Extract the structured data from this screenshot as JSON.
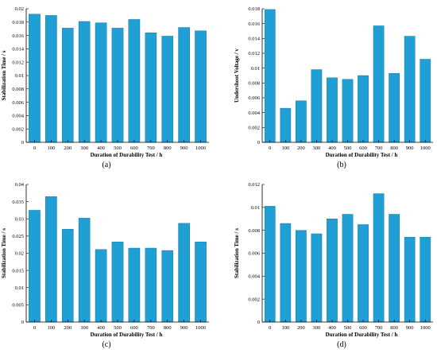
{
  "style": {
    "bar_color": "#1f9fd4",
    "axis_color": "#000000"
  },
  "chart_data": [
    {
      "id": "a",
      "type": "bar",
      "panel_label": "(a)",
      "categories": [
        "0",
        "100",
        "200",
        "300",
        "400",
        "500",
        "600",
        "700",
        "800",
        "900",
        "1000"
      ],
      "values": [
        0.0192,
        0.019,
        0.0171,
        0.0181,
        0.0179,
        0.0171,
        0.0184,
        0.0164,
        0.0159,
        0.0172,
        0.0167
      ],
      "xlabel": "Duration of Durability Test / h",
      "ylabel": "Stabilization Time / s",
      "ylim": [
        0,
        0.02
      ],
      "yticks": [
        "0",
        "0.002",
        "0.004",
        "0.006",
        "0.008",
        "0.01",
        "0.012",
        "0.014",
        "0.016",
        "0.018",
        "0.02"
      ],
      "yticks_values": [
        0,
        0.002,
        0.004,
        0.006,
        0.008,
        0.01,
        0.012,
        0.014,
        0.016,
        0.018,
        0.02
      ],
      "grid": false,
      "legend": "none"
    },
    {
      "id": "b",
      "type": "bar",
      "panel_label": "(b)",
      "categories": [
        "0",
        "100",
        "200",
        "300",
        "400",
        "500",
        "600",
        "700",
        "800",
        "900",
        "1000"
      ],
      "values": [
        0.0179,
        0.0046,
        0.0056,
        0.0098,
        0.0087,
        0.0085,
        0.009,
        0.0157,
        0.0093,
        0.0143,
        0.0112
      ],
      "xlabel": "Duration of Durability Test / h",
      "ylabel": "Undershoot Voltage / v",
      "ylim": [
        0,
        0.018
      ],
      "yticks": [
        "0",
        "0.002",
        "0.004",
        "0.006",
        "0.008",
        "0.01",
        "0.012",
        "0.014",
        "0.016",
        "0.018"
      ],
      "yticks_values": [
        0,
        0.002,
        0.004,
        0.006,
        0.008,
        0.01,
        0.012,
        0.014,
        0.016,
        0.018
      ],
      "grid": false,
      "legend": "none"
    },
    {
      "id": "c",
      "type": "bar",
      "panel_label": "(c)",
      "categories": [
        "0",
        "100",
        "200",
        "300",
        "400",
        "500",
        "600",
        "700",
        "800",
        "900",
        "1000"
      ],
      "values": [
        0.0325,
        0.0365,
        0.027,
        0.0302,
        0.0211,
        0.0233,
        0.0215,
        0.0215,
        0.0208,
        0.0287,
        0.0233
      ],
      "xlabel": "Duration of Durability Test / h",
      "ylabel": "Stabilization Time / s",
      "ylim": [
        0,
        0.04
      ],
      "yticks": [
        "0",
        "0.005",
        "0.01",
        "0.015",
        "0.02",
        "0.025",
        "0.03",
        "0.035",
        "0.04"
      ],
      "yticks_values": [
        0,
        0.005,
        0.01,
        0.015,
        0.02,
        0.025,
        0.03,
        0.035,
        0.04
      ],
      "grid": false,
      "legend": "none"
    },
    {
      "id": "d",
      "type": "bar",
      "panel_label": "(d)",
      "categories": [
        "0",
        "100",
        "200",
        "300",
        "400",
        "500",
        "600",
        "700",
        "800",
        "900",
        "1000"
      ],
      "values": [
        0.0101,
        0.0086,
        0.008,
        0.0077,
        0.009,
        0.0094,
        0.0085,
        0.0112,
        0.0094,
        0.0074,
        0.0074
      ],
      "xlabel": "Duration of Durability Test / h",
      "ylabel": "Stabilization Time / s",
      "ylim": [
        0,
        0.012
      ],
      "yticks": [
        "0",
        "0.002",
        "0.004",
        "0.006",
        "0.008",
        "0.01",
        "0.012"
      ],
      "yticks_values": [
        0,
        0.002,
        0.004,
        0.006,
        0.008,
        0.01,
        0.012
      ],
      "grid": false,
      "legend": "none"
    }
  ]
}
